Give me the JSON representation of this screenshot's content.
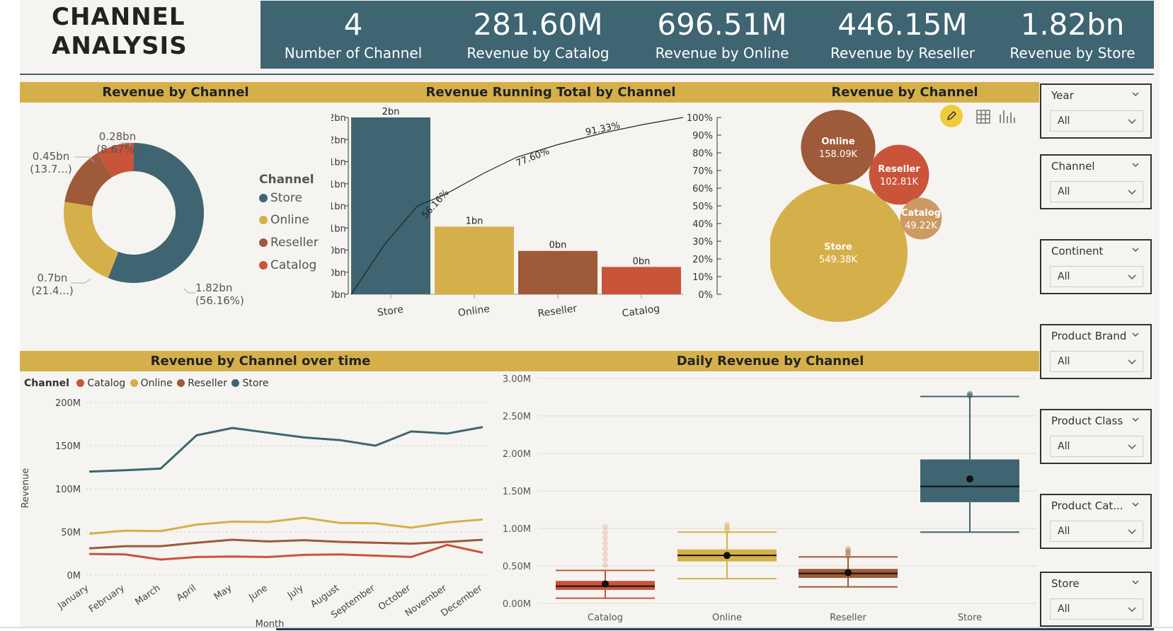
{
  "header": {
    "title_line1": "CHANNEL",
    "title_line2": "ANALYSIS",
    "kpis": [
      {
        "value": "4",
        "label": "Number of Channel"
      },
      {
        "value": "281.60M",
        "label": "Revenue by Catalog"
      },
      {
        "value": "696.51M",
        "label": "Revenue by Online"
      },
      {
        "value": "446.15M",
        "label": "Revenue by Reseller"
      },
      {
        "value": "1.82bn",
        "label": "Revenue by Store"
      }
    ]
  },
  "colors": {
    "store": "#3e6571",
    "online": "#d5b04a",
    "reseller": "#9e5a39",
    "catalog": "#c9543a",
    "band": "#d5b04a",
    "background": "#f6f4f0"
  },
  "panels": {
    "donut_title": "Revenue by Channel",
    "pareto_title": "Revenue Running Total by Channel",
    "bubble_title": "Revenue by Channel",
    "line_title": "Revenue by Channel over time",
    "box_title": "Daily Revenue by Channel"
  },
  "donut_legend": {
    "title": "Channel",
    "items": [
      "Store",
      "Online",
      "Reseller",
      "Catalog"
    ]
  },
  "donut_labels": {
    "catalog_a": "0.28bn",
    "catalog_b": "(8.67%)",
    "reseller_a": "0.45bn",
    "reseller_b": "(13.7...)",
    "online_a": "0.7bn",
    "online_b": "(21.4...)",
    "store_a": "1.82bn",
    "store_b": "(56.16%)"
  },
  "line_legend": {
    "title": "Channel",
    "items": [
      "Catalog",
      "Online",
      "Reseller",
      "Store"
    ]
  },
  "line_axis": {
    "ylabel": "Revenue",
    "xlabel": "Month"
  },
  "slicers": [
    {
      "title": "Year",
      "value": "All"
    },
    {
      "title": "Channel",
      "value": "All"
    },
    {
      "title": "Continent",
      "value": "All"
    },
    {
      "title": "Product Brand",
      "value": "All"
    },
    {
      "title": "Product Class",
      "value": "All"
    },
    {
      "title": "Product Cat...",
      "value": "All"
    },
    {
      "title": "Store",
      "value": "All"
    }
  ],
  "visual_toolbar": {
    "icons": [
      "pencil-icon",
      "table-icon",
      "chart-icon"
    ]
  },
  "chart_data": [
    {
      "type": "pie",
      "title": "Revenue by Channel",
      "categories": [
        "Store",
        "Online",
        "Reseller",
        "Catalog"
      ],
      "values": [
        1.82,
        0.7,
        0.45,
        0.28
      ],
      "percent_labels": [
        "56.16%",
        "21.4...",
        "13.7...",
        "8.67%"
      ],
      "unit": "bn",
      "legend": "left"
    },
    {
      "type": "bar",
      "title": "Revenue Running Total by Channel",
      "categories": [
        "Store",
        "Online",
        "Reseller",
        "Catalog"
      ],
      "values": [
        1.82,
        0.6965,
        0.4462,
        0.2816
      ],
      "data_labels": [
        "2bn",
        "1bn",
        "0bn",
        "0bn"
      ],
      "cumulative_percent": [
        56.16,
        77.6,
        91.33,
        100
      ],
      "cumulative_labels": [
        "56.16%",
        "77.60%",
        "91.33%"
      ],
      "y_ticks": [
        "0bn",
        "0bn",
        "0bn",
        "1bn",
        "1bn",
        "1bn",
        "1bn",
        "2bn",
        "2bn"
      ],
      "y2_ticks": [
        "0%",
        "10%",
        "20%",
        "30%",
        "40%",
        "50%",
        "60%",
        "70%",
        "80%",
        "90%",
        "100%"
      ],
      "ylim": [
        0,
        1.82
      ],
      "y2lim": [
        0,
        100
      ]
    },
    {
      "type": "scatter",
      "title": "Revenue by Channel",
      "subtype": "bubble",
      "categories": [
        "Store",
        "Online",
        "Reseller",
        "Catalog"
      ],
      "values": [
        549380,
        158090,
        102810,
        49220
      ],
      "labels": [
        "549.38K",
        "158.09K",
        "102.81K",
        "49.22K"
      ]
    },
    {
      "type": "line",
      "title": "Revenue by Channel over time",
      "xlabel": "Month",
      "ylabel": "Revenue",
      "x": [
        "January",
        "February",
        "March",
        "April",
        "May",
        "June",
        "July",
        "August",
        "September",
        "October",
        "November",
        "December"
      ],
      "series": [
        {
          "name": "Store",
          "values": [
            120,
            121.5,
            123.5,
            162,
            170.5,
            165,
            159.5,
            156.5,
            150,
            166.5,
            164,
            171.5
          ]
        },
        {
          "name": "Online",
          "values": [
            48,
            51.5,
            51,
            58.5,
            62,
            61.5,
            66.5,
            60.5,
            60,
            55,
            61,
            64.5
          ]
        },
        {
          "name": "Reseller",
          "values": [
            31,
            33.5,
            33.5,
            37.5,
            41,
            39,
            40.5,
            38.5,
            37.5,
            36.5,
            38.5,
            41
          ]
        },
        {
          "name": "Catalog",
          "values": [
            24.5,
            24,
            18,
            21,
            21.5,
            21,
            23.5,
            24,
            22.5,
            21,
            35,
            26
          ]
        }
      ],
      "y_ticks": [
        "0M",
        "50M",
        "100M",
        "150M",
        "200M"
      ],
      "ylim": [
        0,
        200
      ],
      "unit": "M",
      "legend": "top-left",
      "grid": true
    },
    {
      "type": "box",
      "title": "Daily Revenue by Channel",
      "categories": [
        "Catalog",
        "Online",
        "Reseller",
        "Store"
      ],
      "boxes": [
        {
          "name": "Catalog",
          "min": 0.07,
          "q1": 0.18,
          "median": 0.23,
          "q3": 0.3,
          "max": 0.44,
          "mean": 0.26,
          "outlier_max": 1.02
        },
        {
          "name": "Online",
          "min": 0.33,
          "q1": 0.56,
          "median": 0.64,
          "q3": 0.72,
          "max": 0.95,
          "mean": 0.64,
          "outlier_max": 1.06
        },
        {
          "name": "Reseller",
          "min": 0.22,
          "q1": 0.34,
          "median": 0.4,
          "q3": 0.46,
          "max": 0.62,
          "mean": 0.41,
          "outlier_max": 0.73
        },
        {
          "name": "Store",
          "min": 0.95,
          "q1": 1.35,
          "median": 1.56,
          "q3": 1.92,
          "max": 2.76,
          "mean": 1.66,
          "outlier_max": 2.8
        }
      ],
      "y_ticks": [
        "0.00M",
        "0.50M",
        "1.00M",
        "1.50M",
        "2.00M",
        "2.50M",
        "3.00M"
      ],
      "ylim": [
        0,
        3
      ],
      "unit": "M",
      "grid": true
    }
  ]
}
